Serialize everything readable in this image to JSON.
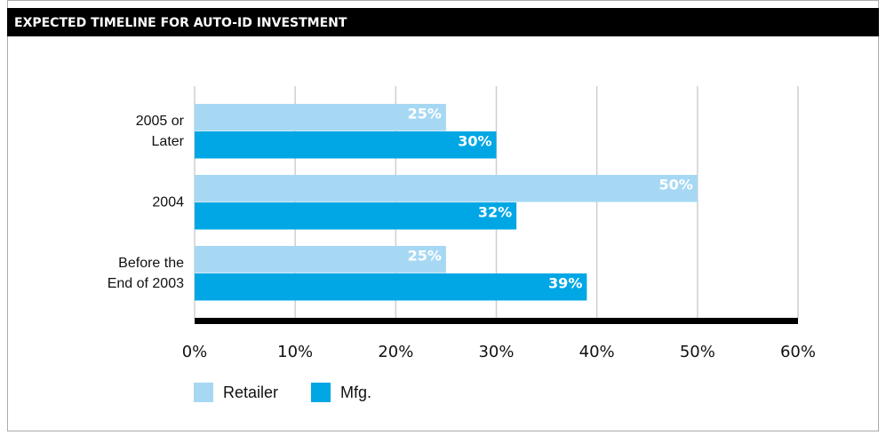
{
  "chart_data": {
    "type": "hbar",
    "title": "EXPECTED TIMELINE FOR AUTO-ID INVESTMENT",
    "categories": [
      "2005 or Later",
      "2004",
      "Before the End of 2003"
    ],
    "series": [
      {
        "name": "Retailer",
        "color": "#a6d8f4",
        "values": [
          25,
          50,
          25
        ],
        "value_labels": [
          "25%",
          "50%",
          "25%"
        ]
      },
      {
        "name": "Mfg.",
        "color": "#00a7e4",
        "values": [
          30,
          32,
          39
        ],
        "value_labels": [
          "30%",
          "32%",
          "39%"
        ]
      }
    ],
    "xlim": [
      0,
      60
    ],
    "xticks": [
      {
        "value": 0,
        "label": "0%"
      },
      {
        "value": 10,
        "label": "10%"
      },
      {
        "value": 20,
        "label": "20%"
      },
      {
        "value": 30,
        "label": "30%"
      },
      {
        "value": 40,
        "label": "40%"
      },
      {
        "value": 50,
        "label": "50%"
      },
      {
        "value": 60,
        "label": "60%"
      }
    ],
    "grid": true
  }
}
